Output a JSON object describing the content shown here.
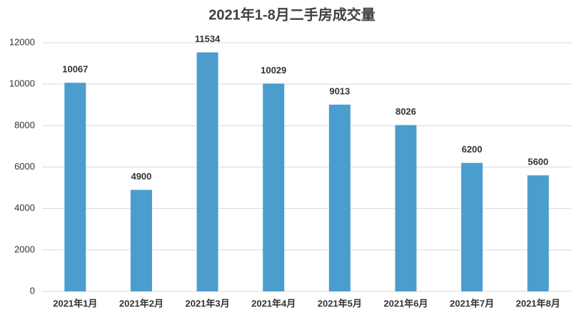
{
  "chart_data": {
    "type": "bar",
    "title": "2021年1-8月二手房成交量",
    "categories": [
      "2021年1月",
      "2021年2月",
      "2021年3月",
      "2021年4月",
      "2021年5月",
      "2021年6月",
      "2021年7月",
      "2021年8月"
    ],
    "values": [
      10067,
      4900,
      11534,
      10029,
      9013,
      8026,
      6200,
      5600
    ],
    "color": "#4a9dcd",
    "ylim": [
      0,
      12000
    ],
    "yticks": [
      0,
      2000,
      4000,
      6000,
      8000,
      10000,
      12000
    ],
    "grid": true,
    "data_labels": true
  }
}
